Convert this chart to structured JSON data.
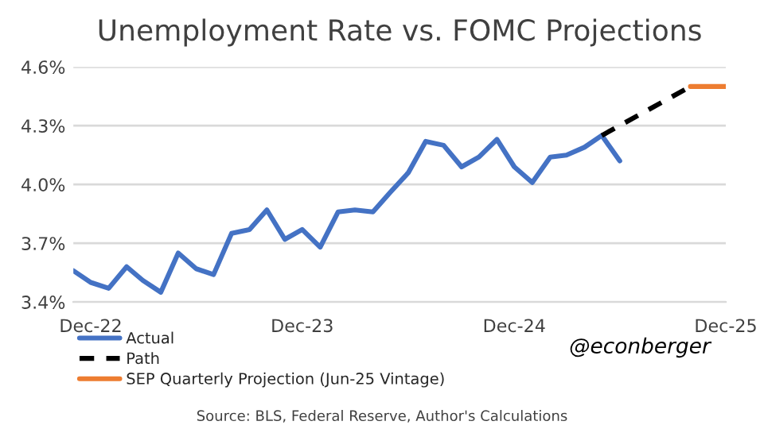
{
  "chart_data": {
    "type": "line",
    "title": "Unemployment Rate vs. FOMC Projections",
    "series": [
      {
        "name": "Actual",
        "color": "#4472c4",
        "line_style": "solid",
        "x": [
          "2022-11",
          "2022-12",
          "2023-01",
          "2023-02",
          "2023-03",
          "2023-04",
          "2023-05",
          "2023-06",
          "2023-07",
          "2023-08",
          "2023-09",
          "2023-10",
          "2023-11",
          "2023-12",
          "2024-01",
          "2024-02",
          "2024-03",
          "2024-04",
          "2024-05",
          "2024-06",
          "2024-07",
          "2024-08",
          "2024-09",
          "2024-10",
          "2024-11",
          "2024-12",
          "2025-01",
          "2025-02",
          "2025-03",
          "2025-04",
          "2025-05",
          "2025-06"
        ],
        "values": [
          3.56,
          3.5,
          3.47,
          3.58,
          3.51,
          3.45,
          3.65,
          3.57,
          3.54,
          3.75,
          3.77,
          3.87,
          3.72,
          3.77,
          3.68,
          3.86,
          3.87,
          3.86,
          3.96,
          4.06,
          4.22,
          4.2,
          4.09,
          4.14,
          4.23,
          4.09,
          4.01,
          4.14,
          4.15,
          4.19,
          4.25,
          4.12
        ]
      },
      {
        "name": "Path",
        "color": "#000000",
        "line_style": "dashed",
        "x": [
          "2025-05",
          "2025-10"
        ],
        "values": [
          4.25,
          4.5
        ]
      },
      {
        "name": "SEP Quarterly Projection (Jun-25 Vintage)",
        "color": "#ed7d31",
        "line_style": "solid",
        "x": [
          "2025-10",
          "2025-12"
        ],
        "values": [
          4.5,
          4.5
        ]
      }
    ],
    "xlim": [
      "2022-11",
      "2025-12"
    ],
    "xticks": [
      {
        "value": "2022-12",
        "label": "Dec-22"
      },
      {
        "value": "2023-12",
        "label": "Dec-23"
      },
      {
        "value": "2024-12",
        "label": "Dec-24"
      },
      {
        "value": "2025-12",
        "label": "Dec-25"
      }
    ],
    "ylim": [
      3.4,
      4.6
    ],
    "yticks": [
      {
        "value": 3.4,
        "label": "3.4%"
      },
      {
        "value": 3.7,
        "label": "3.7%"
      },
      {
        "value": 4.0,
        "label": "4.0%"
      },
      {
        "value": 4.3,
        "label": "4.3%"
      },
      {
        "value": 4.6,
        "label": "4.6%"
      }
    ],
    "grid": "y",
    "legend": "bottom left",
    "annotations": [
      "@econberger",
      "Source: BLS, Federal Reserve, Author's Calculations"
    ]
  }
}
